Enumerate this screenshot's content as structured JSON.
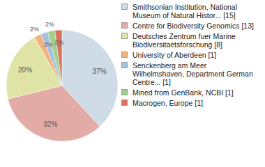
{
  "chart_data": {
    "type": "pie",
    "categories": [
      "Smithsonian Institution, National Museum of Natural Histor... [15]",
      "Centre for Biodiversity Genomics [13]",
      "Deutsches Zentrum fuer Marine Biodiversitaetsforschung [8]",
      "University of Aberdeen [1]",
      "Senckenberg am Meer Wilhelmshaven, Department German Centre... [1]",
      "Mined from GenBank, NCBI [1]",
      "Macrogen, Europe [1]"
    ],
    "values": [
      37,
      32,
      20,
      2,
      2,
      2,
      2
    ],
    "value_labels": [
      "37%",
      "32%",
      "20%",
      "2%",
      "2%",
      "2%",
      "2%"
    ],
    "data_labels": true,
    "colors": [
      "#cfdbe6",
      "#e3aba5",
      "#dfe3a5",
      "#f2b27c",
      "#a5c2e0",
      "#a2cf8e",
      "#d9735f"
    ],
    "legend": "right"
  }
}
